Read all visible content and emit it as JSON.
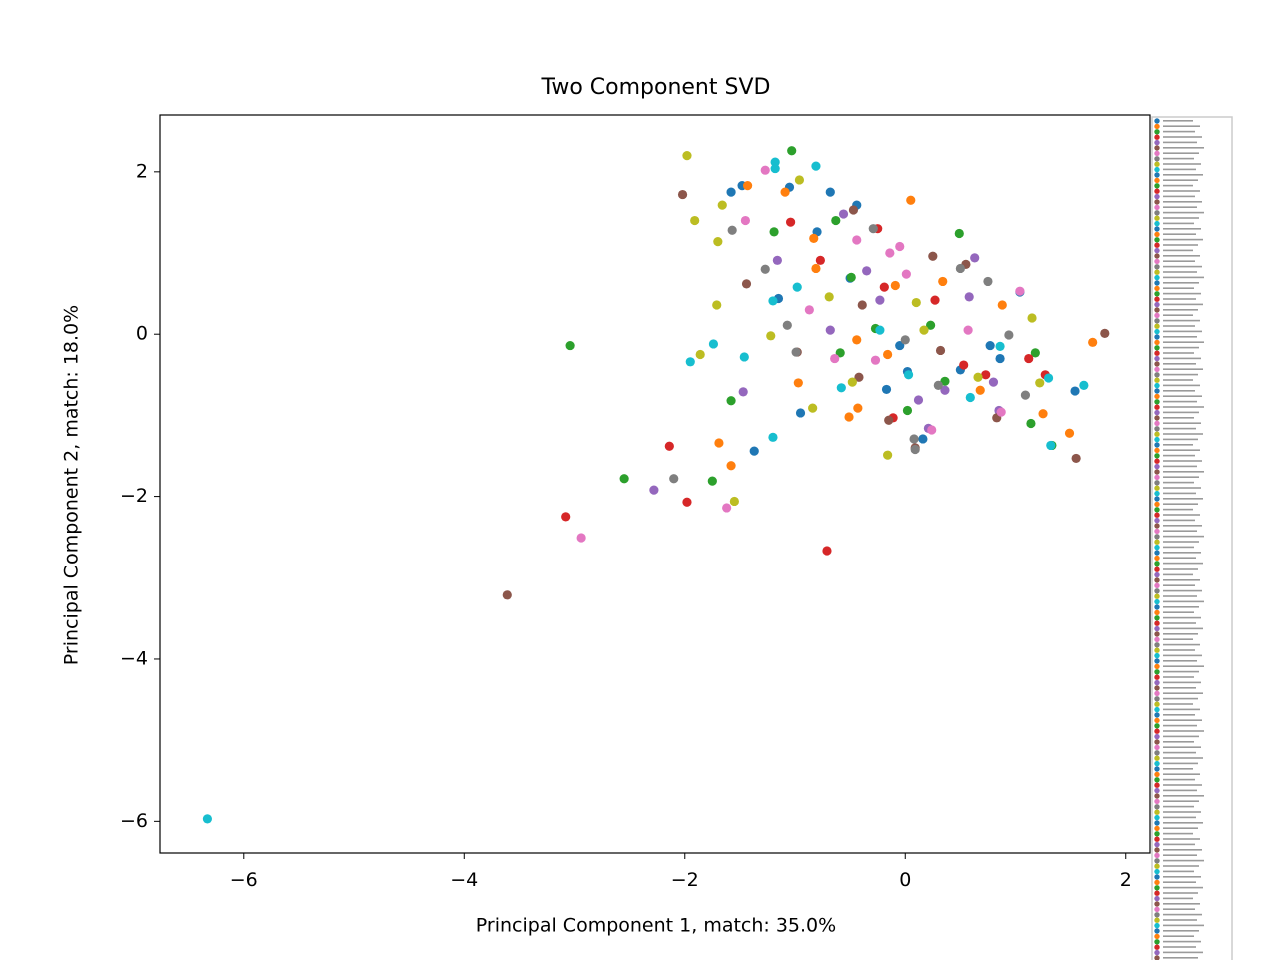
{
  "chart_data": {
    "type": "scatter",
    "title": "Two Component SVD",
    "x_label": "Principal Component 1, match: 35.0%",
    "y_label": "Principal Component 2, match: 18.0%",
    "xlim": [
      -6.76,
      2.22
    ],
    "ylim": [
      -6.39,
      2.7
    ],
    "xticks": [
      {
        "value": -6,
        "label": "−6"
      },
      {
        "value": -4,
        "label": "−4"
      },
      {
        "value": -2,
        "label": "−2"
      },
      0,
      2
    ],
    "yticks": [
      {
        "value": -6,
        "label": "−6"
      },
      {
        "value": -4,
        "label": "−4"
      },
      {
        "value": -2,
        "label": "−2"
      },
      0,
      2
    ],
    "series": [
      {
        "color": "#1f77b4",
        "x": [
          -1.37,
          -0.95,
          -0.17,
          0.02,
          0.16,
          1.54,
          -0.68,
          -0.8,
          -0.44,
          -1.48,
          -1.58,
          -1.05,
          -0.5,
          -0.05,
          0.77,
          1.04,
          0.5,
          0.86,
          -1.15
        ],
        "y": [
          -1.44,
          -0.97,
          -0.68,
          -0.46,
          -1.29,
          -0.7,
          1.75,
          1.26,
          1.59,
          1.83,
          1.75,
          1.81,
          0.69,
          -0.14,
          -0.14,
          0.52,
          -0.44,
          -0.3,
          0.44
        ]
      },
      {
        "color": "#ff7f0e",
        "x": [
          -1.69,
          -1.58,
          -0.51,
          -0.43,
          0.05,
          0.88,
          1.7,
          1.49,
          1.25,
          -1.43,
          -0.83,
          -0.81,
          -0.16,
          0.34,
          0.68,
          -0.44,
          -0.09,
          -1.09,
          -0.97
        ],
        "y": [
          -1.34,
          -1.62,
          -1.02,
          -0.91,
          1.65,
          0.36,
          -0.1,
          -1.22,
          -0.98,
          1.83,
          1.18,
          0.81,
          -0.25,
          0.65,
          -0.69,
          -0.07,
          0.6,
          1.75,
          -0.6
        ]
      },
      {
        "color": "#2ca02c",
        "x": [
          -3.04,
          -2.55,
          -1.75,
          -1.58,
          -1.03,
          -1.19,
          0.49,
          -0.63,
          -0.49,
          0.02,
          1.14,
          1.33,
          -0.59,
          0.36,
          1.18,
          -0.27,
          0.23
        ],
        "y": [
          -0.14,
          -1.78,
          -1.81,
          -0.82,
          2.26,
          1.26,
          1.24,
          1.4,
          0.7,
          -0.94,
          -1.1,
          -1.37,
          -0.23,
          -0.58,
          -0.23,
          0.07,
          0.11
        ]
      },
      {
        "color": "#d62728",
        "x": [
          -3.08,
          -2.14,
          -1.98,
          -0.71,
          -1.04,
          -0.25,
          -0.11,
          -0.19,
          0.73,
          1.12,
          1.27,
          0.27,
          0.53,
          -0.77
        ],
        "y": [
          -2.25,
          -1.38,
          -2.07,
          -2.67,
          1.38,
          1.3,
          -1.03,
          0.58,
          -0.5,
          -0.3,
          -0.5,
          0.42,
          -0.38,
          0.91
        ]
      },
      {
        "color": "#9467bd",
        "x": [
          -2.28,
          -1.47,
          -1.16,
          -0.56,
          0.63,
          0.58,
          0.21,
          0.12,
          0.85,
          -0.68,
          -0.35,
          0.36,
          0.8,
          -0.23
        ],
        "y": [
          -1.92,
          -0.71,
          0.91,
          1.48,
          0.94,
          0.46,
          -1.16,
          -0.81,
          -0.94,
          0.05,
          0.78,
          -0.69,
          -0.59,
          0.42
        ]
      },
      {
        "color": "#8c564b",
        "x": [
          -3.61,
          -2.02,
          -1.44,
          -0.98,
          -0.42,
          -0.47,
          -0.15,
          0.09,
          0.83,
          1.81,
          1.55,
          0.25,
          0.32,
          0.55,
          -0.39
        ],
        "y": [
          -3.21,
          1.72,
          0.62,
          -0.22,
          -0.53,
          1.53,
          -1.06,
          -1.4,
          -1.03,
          0.01,
          -1.53,
          0.96,
          -0.2,
          0.86,
          0.36
        ]
      },
      {
        "color": "#e377c2",
        "x": [
          -2.94,
          -1.62,
          -1.45,
          -1.27,
          -0.87,
          -0.64,
          -0.44,
          -0.05,
          0.24,
          0.87,
          -0.14,
          1.04,
          0.01,
          -0.27,
          0.57
        ],
        "y": [
          -2.51,
          -2.14,
          1.4,
          2.02,
          0.3,
          -0.3,
          1.16,
          1.08,
          -1.18,
          -0.96,
          1.0,
          0.53,
          0.74,
          -0.32,
          0.05
        ]
      },
      {
        "color": "#7f7f7f",
        "x": [
          -2.1,
          -1.57,
          -1.27,
          -1.07,
          -0.99,
          -0.29,
          0.08,
          0.09,
          0.75,
          0.94,
          0.5,
          0.3,
          0.0,
          1.09
        ],
        "y": [
          -1.78,
          1.28,
          0.8,
          0.11,
          -0.22,
          1.3,
          -1.29,
          -1.42,
          0.65,
          -0.01,
          0.81,
          -0.63,
          -0.07,
          -0.75
        ]
      },
      {
        "color": "#bcbd22",
        "x": [
          -1.98,
          -1.91,
          -1.7,
          -1.66,
          -1.71,
          -1.86,
          -1.55,
          -0.16,
          -0.84,
          -1.22,
          -0.69,
          -0.48,
          1.15,
          0.1,
          0.17,
          1.22,
          0.66,
          -0.96
        ],
        "y": [
          2.2,
          1.4,
          1.14,
          1.59,
          0.36,
          -0.25,
          -2.06,
          -1.49,
          -0.91,
          -0.02,
          0.46,
          -0.59,
          0.2,
          0.39,
          0.05,
          -0.6,
          -0.53,
          1.9
        ]
      },
      {
        "color": "#17becf",
        "x": [
          -6.33,
          -1.95,
          -1.74,
          -1.46,
          -1.2,
          -1.18,
          -1.18,
          -0.81,
          -1.2,
          -0.98,
          -0.58,
          0.03,
          0.59,
          1.3,
          1.62,
          1.32,
          -0.23,
          0.86
        ],
        "y": [
          -5.97,
          -0.34,
          -0.12,
          -0.28,
          -1.27,
          2.12,
          2.04,
          2.07,
          0.41,
          0.58,
          -0.66,
          -0.5,
          -0.78,
          -0.54,
          -0.63,
          -1.37,
          0.05,
          -0.15
        ]
      }
    ]
  }
}
